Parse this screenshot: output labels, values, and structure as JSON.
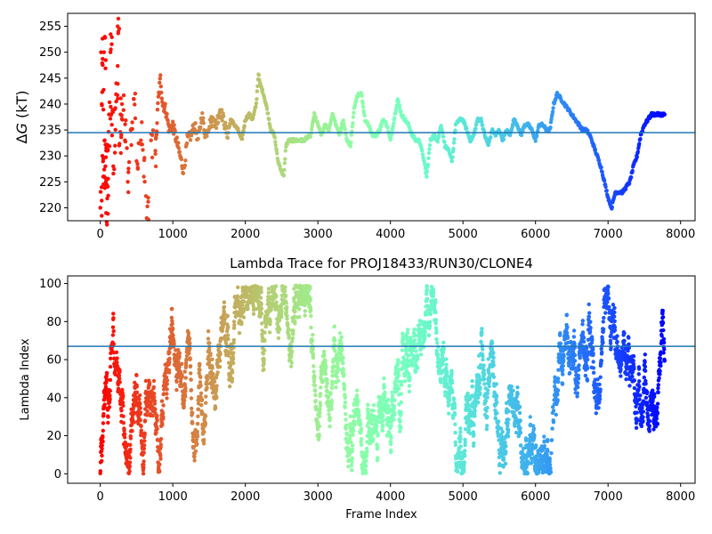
{
  "chart_data": [
    {
      "type": "scatter",
      "title": "",
      "xlabel": "",
      "ylabel": "ΔG (kT)",
      "ylabel_base": "Δ",
      "ylabel_italic": "G",
      "ylabel_unit": " (kT)",
      "xlim": [
        -450,
        8200
      ],
      "ylim": [
        217.5,
        257.5
      ],
      "xticks": [
        "0",
        "1000",
        "2000",
        "3000",
        "4000",
        "5000",
        "6000",
        "7000",
        "8000"
      ],
      "xtick_values": [
        0,
        1000,
        2000,
        3000,
        4000,
        5000,
        6000,
        7000,
        8000
      ],
      "yticks": [
        "220",
        "225",
        "230",
        "235",
        "240",
        "245",
        "250",
        "255"
      ],
      "ytick_values": [
        220,
        225,
        230,
        235,
        240,
        245,
        250,
        255
      ],
      "hline": 234.5,
      "hline_color": "#1f77b4",
      "colormap": "rainbow (red at first frame → violet at last frame)",
      "n_frames": 7800,
      "series": [
        {
          "values": [
            [
              0,
              220
            ],
            [
              10,
              250
            ],
            [
              20,
              240
            ],
            [
              30,
              230
            ],
            [
              40,
              226
            ],
            [
              50,
              250
            ],
            [
              60,
              233
            ],
            [
              70,
              228
            ],
            [
              80,
              219
            ],
            [
              90,
              224
            ],
            [
              100,
              231
            ],
            [
              120,
              238
            ],
            [
              140,
              250
            ],
            [
              160,
              236
            ],
            [
              180,
              228
            ],
            [
              200,
              239
            ],
            [
              220,
              244
            ],
            [
              240,
              255
            ],
            [
              260,
              232
            ],
            [
              280,
              238
            ],
            [
              300,
              240
            ],
            [
              340,
              233
            ],
            [
              380,
              225
            ],
            [
              420,
              235
            ],
            [
              460,
              241
            ],
            [
              500,
              229
            ],
            [
              560,
              233
            ],
            [
              600,
              226
            ],
            [
              640,
              218
            ],
            [
              700,
              233
            ],
            [
              760,
              231
            ],
            [
              800,
              241
            ],
            [
              830,
              245
            ],
            [
              860,
              240
            ],
            [
              900,
              239
            ],
            [
              950,
              235
            ],
            [
              1000,
              236
            ],
            [
              1050,
              233
            ],
            [
              1100,
              230
            ],
            [
              1150,
              227
            ],
            [
              1200,
              233
            ],
            [
              1250,
              234
            ],
            [
              1300,
              236
            ],
            [
              1350,
              233
            ],
            [
              1400,
              238
            ],
            [
              1450,
              234
            ],
            [
              1500,
              236
            ],
            [
              1550,
              237
            ],
            [
              1600,
              236
            ],
            [
              1650,
              239
            ],
            [
              1700,
              237
            ],
            [
              1750,
              234
            ],
            [
              1800,
              237
            ],
            [
              1850,
              236
            ],
            [
              1900,
              235
            ],
            [
              1950,
              233
            ],
            [
              2000,
              237
            ],
            [
              2050,
              238
            ],
            [
              2100,
              237
            ],
            [
              2150,
              240
            ],
            [
              2180,
              246
            ],
            [
              2200,
              244
            ],
            [
              2250,
              242
            ],
            [
              2300,
              239
            ],
            [
              2350,
              235
            ],
            [
              2400,
              234
            ],
            [
              2450,
              229
            ],
            [
              2500,
              227
            ],
            [
              2530,
              226
            ],
            [
              2560,
              232
            ],
            [
              2600,
              233
            ],
            [
              2700,
              233
            ],
            [
              2800,
              233
            ],
            [
              2900,
              234
            ],
            [
              2950,
              238
            ],
            [
              3000,
              236
            ],
            [
              3050,
              234
            ],
            [
              3100,
              236
            ],
            [
              3150,
              235
            ],
            [
              3200,
              238
            ],
            [
              3250,
              236
            ],
            [
              3300,
              234
            ],
            [
              3350,
              237
            ],
            [
              3400,
              233
            ],
            [
              3450,
              232
            ],
            [
              3500,
              239
            ],
            [
              3550,
              242
            ],
            [
              3600,
              242
            ],
            [
              3650,
              237
            ],
            [
              3700,
              236
            ],
            [
              3750,
              234
            ],
            [
              3800,
              234
            ],
            [
              3850,
              235
            ],
            [
              3900,
              237
            ],
            [
              3950,
              236
            ],
            [
              4000,
              233
            ],
            [
              4050,
              237
            ],
            [
              4100,
              241
            ],
            [
              4150,
              238
            ],
            [
              4200,
              237
            ],
            [
              4250,
              236
            ],
            [
              4300,
              234
            ],
            [
              4350,
              233
            ],
            [
              4400,
              233
            ],
            [
              4450,
              230
            ],
            [
              4500,
              226
            ],
            [
              4550,
              233
            ],
            [
              4600,
              234
            ],
            [
              4650,
              233
            ],
            [
              4700,
              236
            ],
            [
              4750,
              232
            ],
            [
              4800,
              231
            ],
            [
              4850,
              229
            ],
            [
              4900,
              236
            ],
            [
              4950,
              237
            ],
            [
              5000,
              237
            ],
            [
              5050,
              235
            ],
            [
              5100,
              233
            ],
            [
              5150,
              234
            ],
            [
              5200,
              237
            ],
            [
              5250,
              237
            ],
            [
              5300,
              234
            ],
            [
              5350,
              232
            ],
            [
              5400,
              235
            ],
            [
              5450,
              234
            ],
            [
              5500,
              235
            ],
            [
              5550,
              233
            ],
            [
              5600,
              235
            ],
            [
              5650,
              234
            ],
            [
              5700,
              237
            ],
            [
              5750,
              236
            ],
            [
              5800,
              234
            ],
            [
              5850,
              236
            ],
            [
              5900,
              236
            ],
            [
              5950,
              235
            ],
            [
              6000,
              233
            ],
            [
              6050,
              236
            ],
            [
              6100,
              236
            ],
            [
              6150,
              235
            ],
            [
              6200,
              235
            ],
            [
              6250,
              240
            ],
            [
              6300,
              242
            ],
            [
              6350,
              241
            ],
            [
              6400,
              240
            ],
            [
              6450,
              239
            ],
            [
              6500,
              238
            ],
            [
              6550,
              237
            ],
            [
              6600,
              236
            ],
            [
              6650,
              235
            ],
            [
              6700,
              235
            ],
            [
              6750,
              234
            ],
            [
              6800,
              232
            ],
            [
              6850,
              230
            ],
            [
              6900,
              228
            ],
            [
              6950,
              225
            ],
            [
              7000,
              222
            ],
            [
              7050,
              220
            ],
            [
              7100,
              223
            ],
            [
              7150,
              223
            ],
            [
              7200,
              223
            ],
            [
              7250,
              224
            ],
            [
              7300,
              225
            ],
            [
              7350,
              228
            ],
            [
              7400,
              230
            ],
            [
              7450,
              234
            ],
            [
              7500,
              236
            ],
            [
              7550,
              237
            ],
            [
              7600,
              238
            ],
            [
              7700,
              238
            ],
            [
              7780,
              238
            ]
          ]
        }
      ]
    },
    {
      "type": "scatter",
      "title": "Lambda Trace for PROJ18433/RUN30/CLONE4",
      "xlabel": "Frame Index",
      "ylabel": "Lambda Index",
      "xlim": [
        -450,
        8200
      ],
      "ylim": [
        -5,
        104
      ],
      "xticks": [
        "0",
        "1000",
        "2000",
        "3000",
        "4000",
        "5000",
        "6000",
        "7000",
        "8000"
      ],
      "xtick_values": [
        0,
        1000,
        2000,
        3000,
        4000,
        5000,
        6000,
        7000,
        8000
      ],
      "yticks": [
        "0",
        "20",
        "40",
        "60",
        "80",
        "100"
      ],
      "ytick_values": [
        0,
        20,
        40,
        60,
        80,
        100
      ],
      "hline": 67,
      "hline_color": "#1f77b4",
      "colormap": "rainbow (red at first frame → violet at last frame)",
      "n_frames": 7800,
      "lambda_range": [
        0,
        99
      ],
      "notes": "dense random-walk trace of lambda index over frames; dominant band 0–99 across all frames"
    }
  ]
}
